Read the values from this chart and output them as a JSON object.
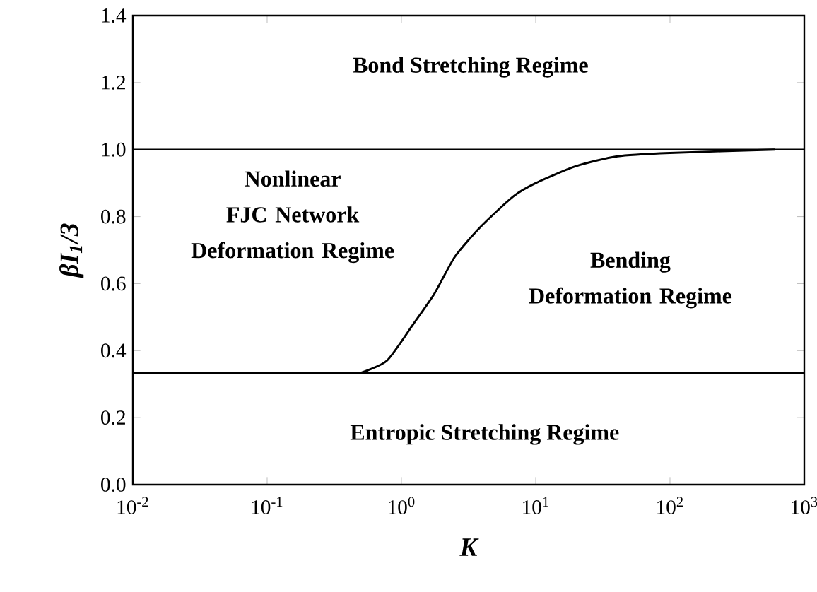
{
  "chart_data": {
    "type": "line",
    "xlabel": "*K*",
    "ylabel": "βI$_{1}$/3",
    "log": "x",
    "xlim": [
      0.01,
      1000
    ],
    "ylim": [
      0,
      1.4
    ],
    "xticks": [
      {
        "value": 0.01,
        "label": "10$^{-2}$"
      },
      {
        "value": 0.1,
        "label": "10$^{-1}$"
      },
      {
        "value": 1,
        "label": "10$^{0}$"
      },
      {
        "value": 10,
        "label": "10$^{1}$"
      },
      {
        "value": 100,
        "label": "10$^{2}$"
      },
      {
        "value": 1000,
        "label": "10$^{3}$"
      }
    ],
    "yticks": [
      {
        "value": 0,
        "label": "0.0"
      },
      {
        "value": 0.2,
        "label": "0.2"
      },
      {
        "value": 0.4,
        "label": "0.4"
      },
      {
        "value": 0.6,
        "label": "0.6"
      },
      {
        "value": 0.8,
        "label": "0.8"
      },
      {
        "value": 1.0,
        "label": "1.0"
      },
      {
        "value": 1.2,
        "label": "1.2"
      },
      {
        "value": 1.4,
        "label": "1.4"
      }
    ],
    "grid": false,
    "marker": "none",
    "line_style": "solid",
    "series": [
      {
        "color": "#000000",
        "x": [
          0.5,
          0.78,
          1.23,
          1.76,
          2.5,
          3.9,
          6.8,
          10,
          19.8,
          40.6,
          100,
          603
        ],
        "values": [
          0.334,
          0.37,
          0.48,
          0.57,
          0.68,
          0.77,
          0.86,
          0.9,
          0.95,
          0.98,
          0.99,
          1.0
        ]
      }
    ],
    "ref_lines": [
      {
        "axis": "y",
        "value": 1.0,
        "color": "#000000",
        "line_style": "solid"
      },
      {
        "axis": "y",
        "value": 0.333,
        "color": "#000000",
        "line_style": "solid"
      }
    ],
    "annotations": [
      "Bond Stretching Regime",
      "Nonlinear FJC Network Deformation Regime",
      "Bending Deformation Regime",
      "Entropic Stretching Regime"
    ]
  }
}
